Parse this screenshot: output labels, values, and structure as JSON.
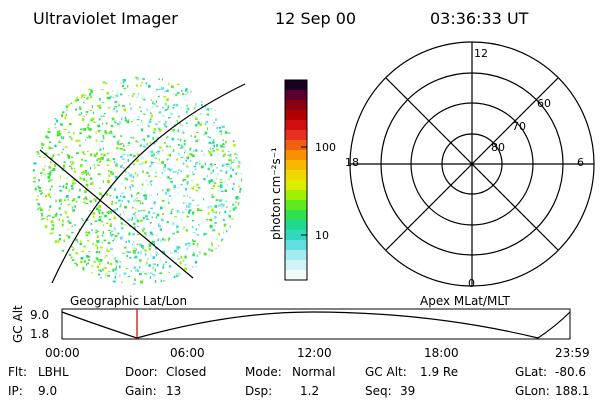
{
  "header": {
    "instrument": "Ultraviolet Imager",
    "date": "12 Sep 00",
    "time": "03:36:33 UT"
  },
  "image_panel": {
    "caption": "Geographic Lat/Lon"
  },
  "colorbar": {
    "label": "photon cm⁻²s⁻¹",
    "ticks": [
      "100",
      "10"
    ],
    "colors": [
      "#1a0020",
      "#5a0030",
      "#8a0010",
      "#b00000",
      "#d01010",
      "#e83020",
      "#f06010",
      "#f89000",
      "#f8b800",
      "#f0d800",
      "#d8f000",
      "#a0f000",
      "#60e820",
      "#30e050",
      "#20d890",
      "#30d8c0",
      "#60e0e0",
      "#a0ecf0",
      "#d0f4f8",
      "#f0fafc"
    ]
  },
  "polar_plot": {
    "caption": "Apex MLat/MLT",
    "mlt_labels": {
      "top": "12",
      "left": "18",
      "right": "6",
      "bottom": "0"
    },
    "mlat_labels": [
      "60",
      "70",
      "80"
    ]
  },
  "altitude_plot": {
    "ylabel": "GC Alt",
    "yticks": [
      "9.0",
      "1.8"
    ],
    "xticks": [
      "00:00",
      "06:00",
      "12:00",
      "18:00",
      "23:59"
    ],
    "marker_color": "#c00000"
  },
  "info": {
    "row1": [
      {
        "key": "Flt:",
        "value": "LBHL"
      },
      {
        "key": "Door:",
        "value": "Closed"
      },
      {
        "key": "Mode:",
        "value": "Normal"
      },
      {
        "key": "GC Alt:",
        "value": "1.9 Re"
      },
      {
        "key": "GLat:",
        "value": "-80.6"
      }
    ],
    "row2": [
      {
        "key": "IP:",
        "value": "9.0"
      },
      {
        "key": "Gain:",
        "value": "13"
      },
      {
        "key": "Dsp:",
        "value": "1.2"
      },
      {
        "key": "Seq:",
        "value": "39"
      },
      {
        "key": "GLon:",
        "value": "188.1"
      }
    ]
  }
}
